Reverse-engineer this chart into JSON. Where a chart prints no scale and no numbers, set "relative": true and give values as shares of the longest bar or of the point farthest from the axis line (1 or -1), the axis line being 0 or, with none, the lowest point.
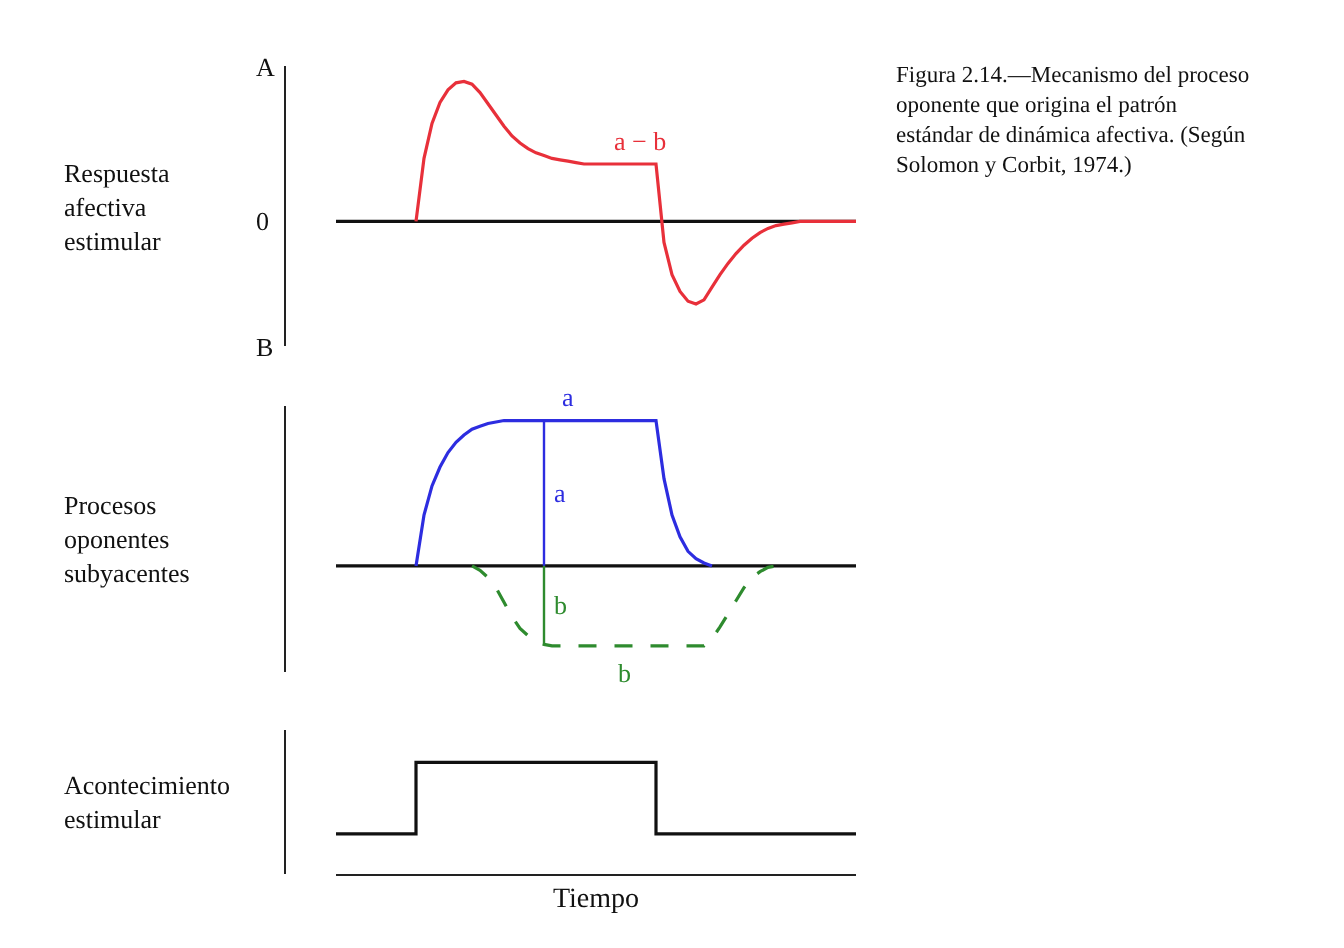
{
  "chart_data": [
    {
      "type": "line",
      "relative": true,
      "ylabel": "Respuesta afectiva estimular",
      "grid": false,
      "legend": false,
      "categories": [
        null,
        null,
        null,
        null,
        null,
        null,
        null,
        null,
        null,
        null,
        null,
        null,
        null,
        null,
        null,
        null,
        null,
        null,
        null,
        null,
        null,
        null,
        null,
        null,
        null,
        null,
        null,
        null,
        null,
        null,
        null,
        null,
        null,
        null,
        null,
        null,
        null,
        null,
        null,
        null,
        null,
        null,
        null,
        null,
        null,
        null,
        null,
        null,
        null,
        null,
        null,
        null,
        null,
        null,
        null,
        null,
        null,
        null,
        null,
        null,
        null,
        null,
        null,
        null,
        null,
        null
      ],
      "series": [
        {
          "name": "a − b",
          "color": "#e8303a",
          "values": [
            null,
            null,
            null,
            null,
            null,
            null,
            null,
            null,
            null,
            null,
            0,
            0.45,
            0.7,
            0.85,
            0.94,
            0.99,
            1.0,
            0.98,
            0.92,
            0.84,
            0.76,
            0.68,
            0.61,
            0.56,
            0.52,
            0.49,
            0.47,
            0.45,
            0.44,
            0.43,
            0.42,
            0.41,
            0.41,
            0.41,
            0.41,
            0.41,
            0.41,
            0.41,
            0.41,
            0.41,
            0.41,
            -0.15,
            -0.38,
            -0.5,
            -0.57,
            -0.59,
            -0.56,
            -0.47,
            -0.38,
            -0.3,
            -0.23,
            -0.17,
            -0.12,
            -0.08,
            -0.05,
            -0.03,
            -0.02,
            -0.01,
            0,
            0,
            0,
            0,
            0,
            0,
            0,
            0
          ]
        }
      ],
      "annotations": [
        "A",
        "0",
        "B",
        "Figura 2.14.—Mecanismo del proceso oponente que origina el patrón estándar de dinámica afectiva. (Según Solomon y Corbit, 1974.)"
      ]
    },
    {
      "type": "line",
      "relative": true,
      "ylabel": "Procesos oponentes subyacentes",
      "grid": false,
      "legend": false,
      "categories": [
        null,
        null,
        null,
        null,
        null,
        null,
        null,
        null,
        null,
        null,
        null,
        null,
        null,
        null,
        null,
        null,
        null,
        null,
        null,
        null,
        null,
        null,
        null,
        null,
        null,
        null,
        null,
        null,
        null,
        null,
        null,
        null,
        null,
        null,
        null,
        null,
        null,
        null,
        null,
        null,
        null,
        null,
        null,
        null,
        null,
        null,
        null,
        null,
        null,
        null,
        null,
        null,
        null,
        null,
        null,
        null,
        null,
        null,
        null,
        null,
        null,
        null,
        null,
        null,
        null,
        null
      ],
      "series": [
        {
          "name": "a",
          "color": "#2d2de0",
          "values": [
            null,
            null,
            null,
            null,
            null,
            null,
            null,
            null,
            null,
            null,
            0,
            0.35,
            0.55,
            0.68,
            0.78,
            0.85,
            0.9,
            0.94,
            0.96,
            0.98,
            0.99,
            1.0,
            1.0,
            1.0,
            1.0,
            1.0,
            1.0,
            1.0,
            1.0,
            1.0,
            1.0,
            1.0,
            1.0,
            1.0,
            1.0,
            1.0,
            1.0,
            1.0,
            1.0,
            1.0,
            1.0,
            0.6,
            0.35,
            0.2,
            0.1,
            0.05,
            0.02,
            0,
            null,
            null,
            null,
            null,
            null,
            null,
            null,
            null,
            null,
            null,
            null,
            null,
            null,
            null,
            null,
            null,
            null,
            null
          ]
        },
        {
          "name": "b",
          "color": "#2e8b2e",
          "line_style": "dashed",
          "values": [
            null,
            null,
            null,
            null,
            null,
            null,
            null,
            null,
            null,
            null,
            null,
            null,
            null,
            null,
            null,
            null,
            null,
            0,
            -0.03,
            -0.08,
            -0.15,
            -0.25,
            -0.35,
            -0.43,
            -0.48,
            -0.52,
            -0.54,
            -0.55,
            -0.55,
            -0.55,
            -0.55,
            -0.55,
            -0.55,
            -0.55,
            -0.55,
            -0.55,
            -0.55,
            -0.55,
            -0.55,
            -0.55,
            -0.55,
            -0.55,
            -0.55,
            -0.55,
            -0.55,
            -0.55,
            -0.55,
            -0.5,
            -0.42,
            -0.33,
            -0.24,
            -0.15,
            -0.08,
            -0.04,
            -0.01,
            0,
            null,
            null,
            null,
            null,
            null,
            null,
            null,
            null,
            null,
            null
          ]
        }
      ],
      "annotations": [
        "a",
        "b"
      ]
    },
    {
      "type": "step",
      "relative": true,
      "ylabel": "Acontecimiento estimular",
      "xlabel": "Tiempo",
      "grid": false,
      "legend": false,
      "categories": [
        null,
        null,
        null,
        null,
        null,
        null,
        null,
        null,
        null,
        null,
        null,
        null,
        null,
        null,
        null,
        null,
        null,
        null,
        null,
        null,
        null,
        null,
        null,
        null,
        null,
        null,
        null,
        null,
        null,
        null,
        null,
        null,
        null,
        null,
        null,
        null,
        null,
        null,
        null,
        null,
        null,
        null,
        null,
        null,
        null,
        null,
        null,
        null,
        null,
        null,
        null,
        null,
        null,
        null,
        null,
        null,
        null,
        null,
        null,
        null,
        null,
        null,
        null,
        null,
        null,
        null
      ],
      "series": [
        {
          "color": "#111111",
          "values": [
            0.36,
            0.36,
            0.36,
            0.36,
            0.36,
            0.36,
            0.36,
            0.36,
            0.36,
            0.36,
            1,
            1,
            1,
            1,
            1,
            1,
            1,
            1,
            1,
            1,
            1,
            1,
            1,
            1,
            1,
            1,
            1,
            1,
            1,
            1,
            1,
            1,
            1,
            1,
            1,
            1,
            1,
            1,
            1,
            1,
            0.36,
            0.36,
            0.36,
            0.36,
            0.36,
            0.36,
            0.36,
            0.36,
            0.36,
            0.36,
            0.36,
            0.36,
            0.36,
            0.36,
            0.36,
            0.36,
            0.36,
            0.36,
            0.36,
            0.36,
            0.36,
            0.36,
            0.36,
            0.36,
            0.36,
            0.36
          ]
        }
      ]
    }
  ]
}
